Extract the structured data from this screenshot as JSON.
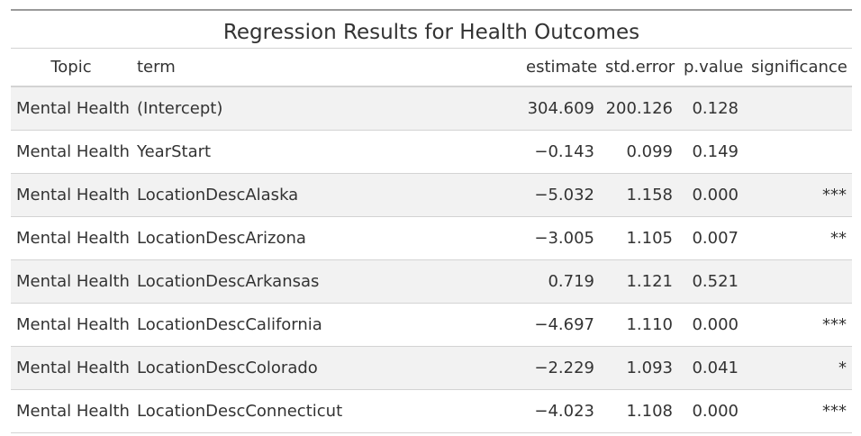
{
  "table": {
    "title": "Regression Results for Health Outcomes",
    "headers": {
      "topic": "Topic",
      "term": "term",
      "estimate": "estimate",
      "std_error": "std.error",
      "p_value": "p.value",
      "significance": "significance"
    },
    "rows": [
      {
        "topic": "Mental Health",
        "term": "(Intercept)",
        "estimate": "304.609",
        "std_error": "200.126",
        "p_value": "0.128",
        "significance": ""
      },
      {
        "topic": "Mental Health",
        "term": "YearStart",
        "estimate": "−0.143",
        "std_error": "0.099",
        "p_value": "0.149",
        "significance": ""
      },
      {
        "topic": "Mental Health",
        "term": "LocationDescAlaska",
        "estimate": "−5.032",
        "std_error": "1.158",
        "p_value": "0.000",
        "significance": "***"
      },
      {
        "topic": "Mental Health",
        "term": "LocationDescArizona",
        "estimate": "−3.005",
        "std_error": "1.105",
        "p_value": "0.007",
        "significance": "**"
      },
      {
        "topic": "Mental Health",
        "term": "LocationDescArkansas",
        "estimate": "0.719",
        "std_error": "1.121",
        "p_value": "0.521",
        "significance": ""
      },
      {
        "topic": "Mental Health",
        "term": "LocationDescCalifornia",
        "estimate": "−4.697",
        "std_error": "1.110",
        "p_value": "0.000",
        "significance": "***"
      },
      {
        "topic": "Mental Health",
        "term": "LocationDescColorado",
        "estimate": "−2.229",
        "std_error": "1.093",
        "p_value": "0.041",
        "significance": "*"
      },
      {
        "topic": "Mental Health",
        "term": "LocationDescConnecticut",
        "estimate": "−4.023",
        "std_error": "1.108",
        "p_value": "0.000",
        "significance": "***"
      }
    ]
  },
  "colors": {
    "text": "#333333",
    "stripe": "#f2f2f2",
    "rule": "#d3d3d3",
    "top_rule": "#9a9a9a"
  }
}
